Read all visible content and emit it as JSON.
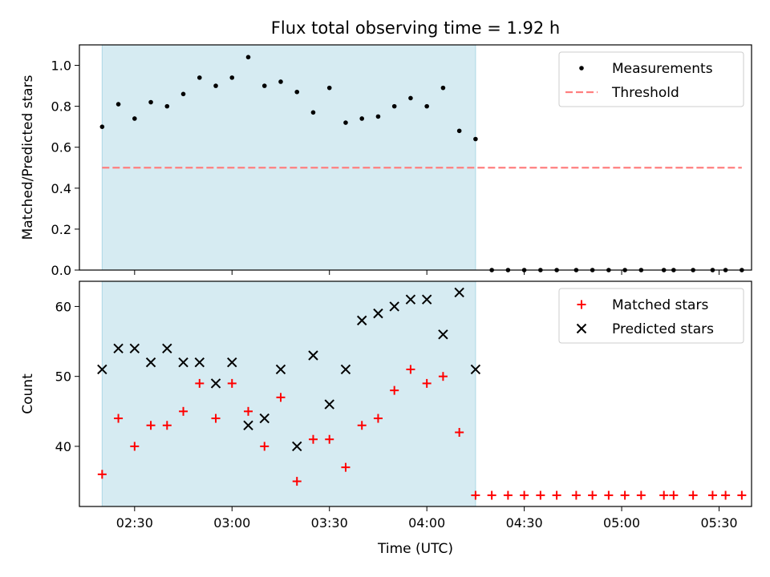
{
  "figure": {
    "title": "Flux total observing time = 1.92 h",
    "xlabel": "Time (UTC)",
    "x_tick_labels": [
      "02:30",
      "03:00",
      "03:30",
      "04:00",
      "04:30",
      "05:00",
      "05:30"
    ],
    "shaded_span": {
      "start": "02:20",
      "end": "04:15",
      "color": "#add8e6"
    }
  },
  "chart_data": [
    {
      "type": "scatter",
      "panel": "top",
      "ylabel": "Matched/Predicted stars",
      "ylim": [
        0,
        1.1
      ],
      "yticks": [
        0.0,
        0.2,
        0.4,
        0.6,
        0.8,
        1.0
      ],
      "y_tick_labels": [
        "0.0",
        "0.2",
        "0.4",
        "0.6",
        "0.8",
        "1.0"
      ],
      "xlim": [
        "02:13",
        "05:40"
      ],
      "legend_position": "top-right",
      "series": [
        {
          "name": "Measurements",
          "kind": "points",
          "color": "#000000",
          "x": [
            "02:20",
            "02:25",
            "02:30",
            "02:35",
            "02:40",
            "02:45",
            "02:50",
            "02:55",
            "03:00",
            "03:05",
            "03:10",
            "03:15",
            "03:20",
            "03:25",
            "03:30",
            "03:35",
            "03:40",
            "03:45",
            "03:50",
            "03:55",
            "04:00",
            "04:05",
            "04:10",
            "04:15",
            "04:20",
            "04:25",
            "04:30",
            "04:35",
            "04:40",
            "04:46",
            "04:51",
            "04:56",
            "05:01",
            "05:06",
            "05:13",
            "05:16",
            "05:22",
            "05:28",
            "05:32",
            "05:37"
          ],
          "y": [
            0.7,
            0.81,
            0.74,
            0.82,
            0.8,
            0.86,
            0.94,
            0.9,
            0.94,
            1.04,
            0.9,
            0.92,
            0.87,
            0.77,
            0.89,
            0.72,
            0.74,
            0.75,
            0.8,
            0.84,
            0.8,
            0.89,
            0.68,
            0.64,
            0,
            0,
            0,
            0,
            0,
            0,
            0,
            0,
            0,
            0,
            0,
            0,
            0,
            0,
            0,
            0
          ]
        },
        {
          "name": "Threshold",
          "kind": "dashed-line",
          "color": "#ff7f7f",
          "x": [
            "02:20",
            "05:37"
          ],
          "y": [
            0.5,
            0.5
          ]
        }
      ]
    },
    {
      "type": "scatter",
      "panel": "bottom",
      "ylabel": "Count",
      "ylim": [
        31.4,
        63.6
      ],
      "yticks": [
        40,
        50,
        60
      ],
      "y_tick_labels": [
        "40",
        "50",
        "60"
      ],
      "xlim": [
        "02:13",
        "05:40"
      ],
      "legend_position": "top-right",
      "series": [
        {
          "name": "Matched stars",
          "marker": "plus",
          "color": "#ff0000",
          "x": [
            "02:20",
            "02:25",
            "02:30",
            "02:35",
            "02:40",
            "02:45",
            "02:50",
            "02:55",
            "03:00",
            "03:05",
            "03:10",
            "03:15",
            "03:20",
            "03:25",
            "03:30",
            "03:35",
            "03:40",
            "03:45",
            "03:50",
            "03:55",
            "04:00",
            "04:05",
            "04:10",
            "04:15",
            "04:20",
            "04:25",
            "04:30",
            "04:35",
            "04:40",
            "04:46",
            "04:51",
            "04:56",
            "05:01",
            "05:06",
            "05:13",
            "05:16",
            "05:22",
            "05:28",
            "05:32",
            "05:37"
          ],
          "y": [
            36,
            44,
            40,
            43,
            43,
            45,
            49,
            44,
            49,
            45,
            40,
            47,
            35,
            41,
            41,
            37,
            43,
            44,
            48,
            51,
            49,
            50,
            42,
            33,
            33,
            33,
            33,
            33,
            33,
            33,
            33,
            33,
            33,
            33,
            33,
            33,
            33,
            33,
            33,
            33
          ]
        },
        {
          "name": "Predicted stars",
          "marker": "x",
          "color": "#000000",
          "x": [
            "02:20",
            "02:25",
            "02:30",
            "02:35",
            "02:40",
            "02:45",
            "02:50",
            "02:55",
            "03:00",
            "03:05",
            "03:10",
            "03:15",
            "03:20",
            "03:25",
            "03:30",
            "03:35",
            "03:40",
            "03:45",
            "03:50",
            "03:55",
            "04:00",
            "04:05",
            "04:10",
            "04:15"
          ],
          "y": [
            51,
            54,
            54,
            52,
            54,
            52,
            52,
            49,
            52,
            43,
            44,
            51,
            40,
            53,
            46,
            51,
            58,
            59,
            60,
            61,
            61,
            56,
            62,
            51
          ]
        }
      ]
    }
  ]
}
